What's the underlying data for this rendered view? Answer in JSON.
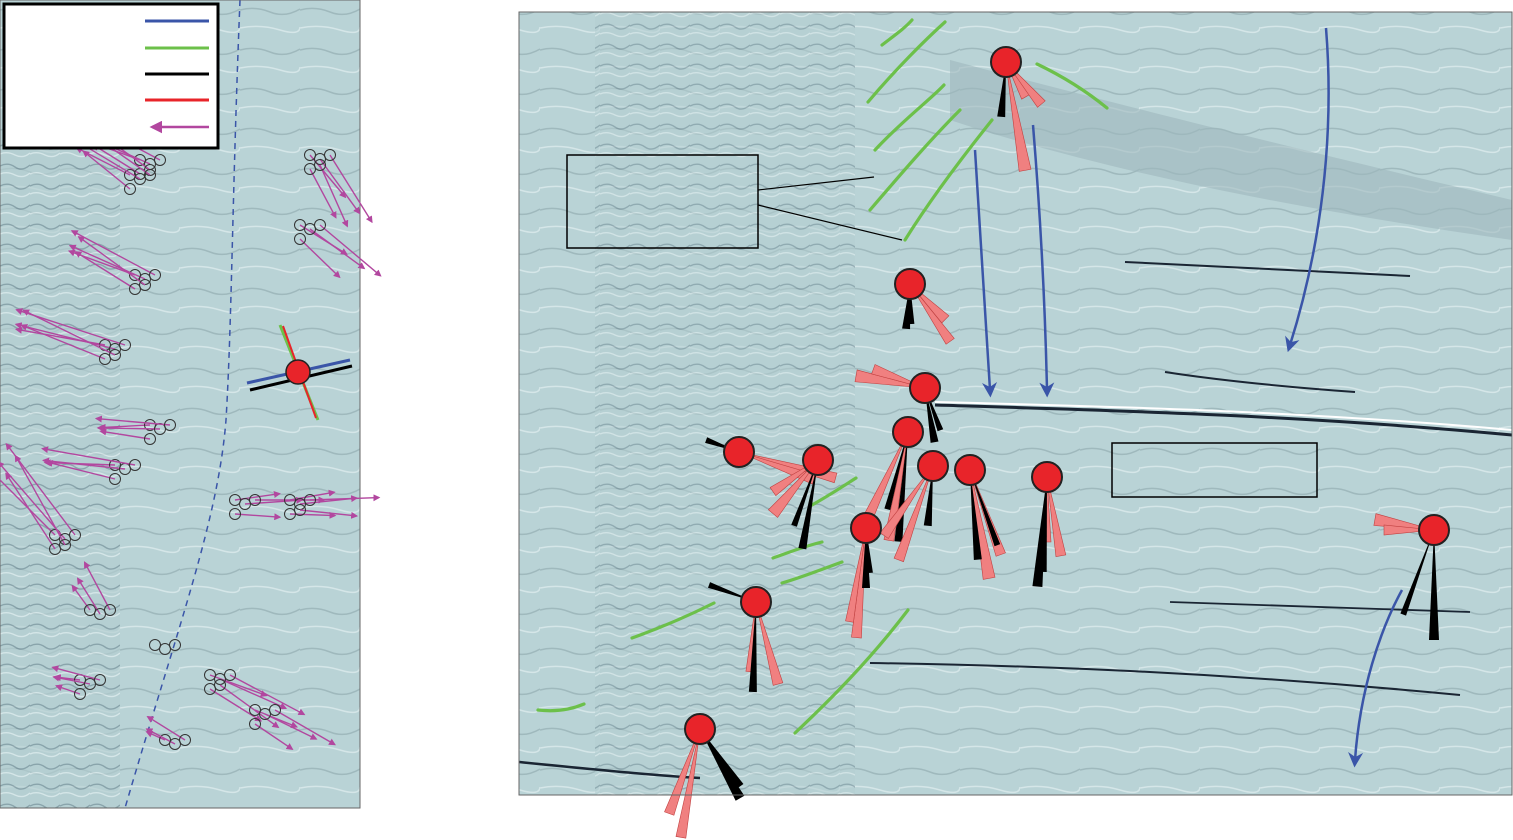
{
  "figure": {
    "panels": [
      {
        "id": "left",
        "description_label": ""
      },
      {
        "id": "right",
        "description_label": ""
      }
    ],
    "legend": {
      "entries": [
        {
          "symbol": "line",
          "color": "#3a55a8",
          "label": ""
        },
        {
          "symbol": "line",
          "color": "#6cc04a",
          "label": ""
        },
        {
          "symbol": "line",
          "color": "#000000",
          "label": ""
        },
        {
          "symbol": "line",
          "color": "#e8242a",
          "label": ""
        },
        {
          "symbol": "arrow",
          "color": "#b2479f",
          "label": ""
        }
      ]
    },
    "colors": {
      "ice_background": "#b9d3d6",
      "flow_arrow": "#3a55a8",
      "crevasse_trace": "#6cc04a",
      "station_fill": "#e8242a",
      "rose_pale": "#f08080",
      "rose_dark": "#000000",
      "vector_arrow": "#b2479f",
      "profile_dashed": "#3a55a8"
    },
    "icons": {
      "station": "red-circle-station-marker",
      "rose": "rose-diagram-wedges",
      "flow": "flow-direction-arrow",
      "vector": "magenta-vector-arrow"
    }
  }
}
